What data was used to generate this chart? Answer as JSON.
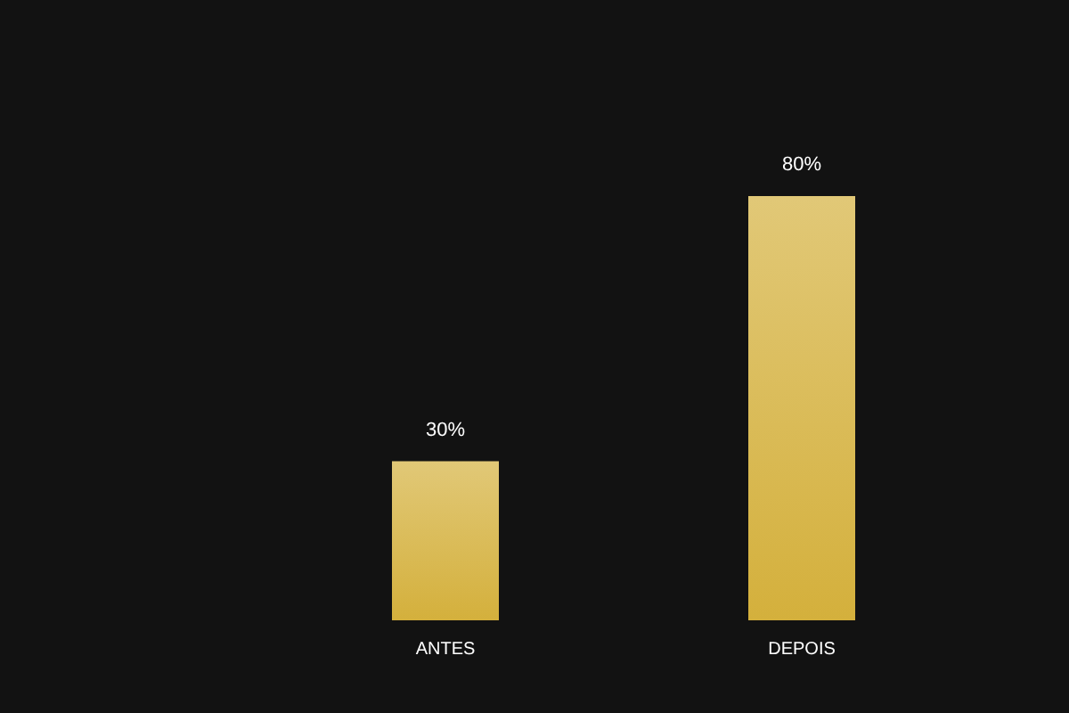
{
  "chart_data": {
    "type": "bar",
    "categories": [
      "ANTES",
      "DEPOIS"
    ],
    "values": [
      30,
      80
    ],
    "value_labels": [
      "30%",
      "80%"
    ],
    "color": "#d4b03c",
    "legend": false
  }
}
